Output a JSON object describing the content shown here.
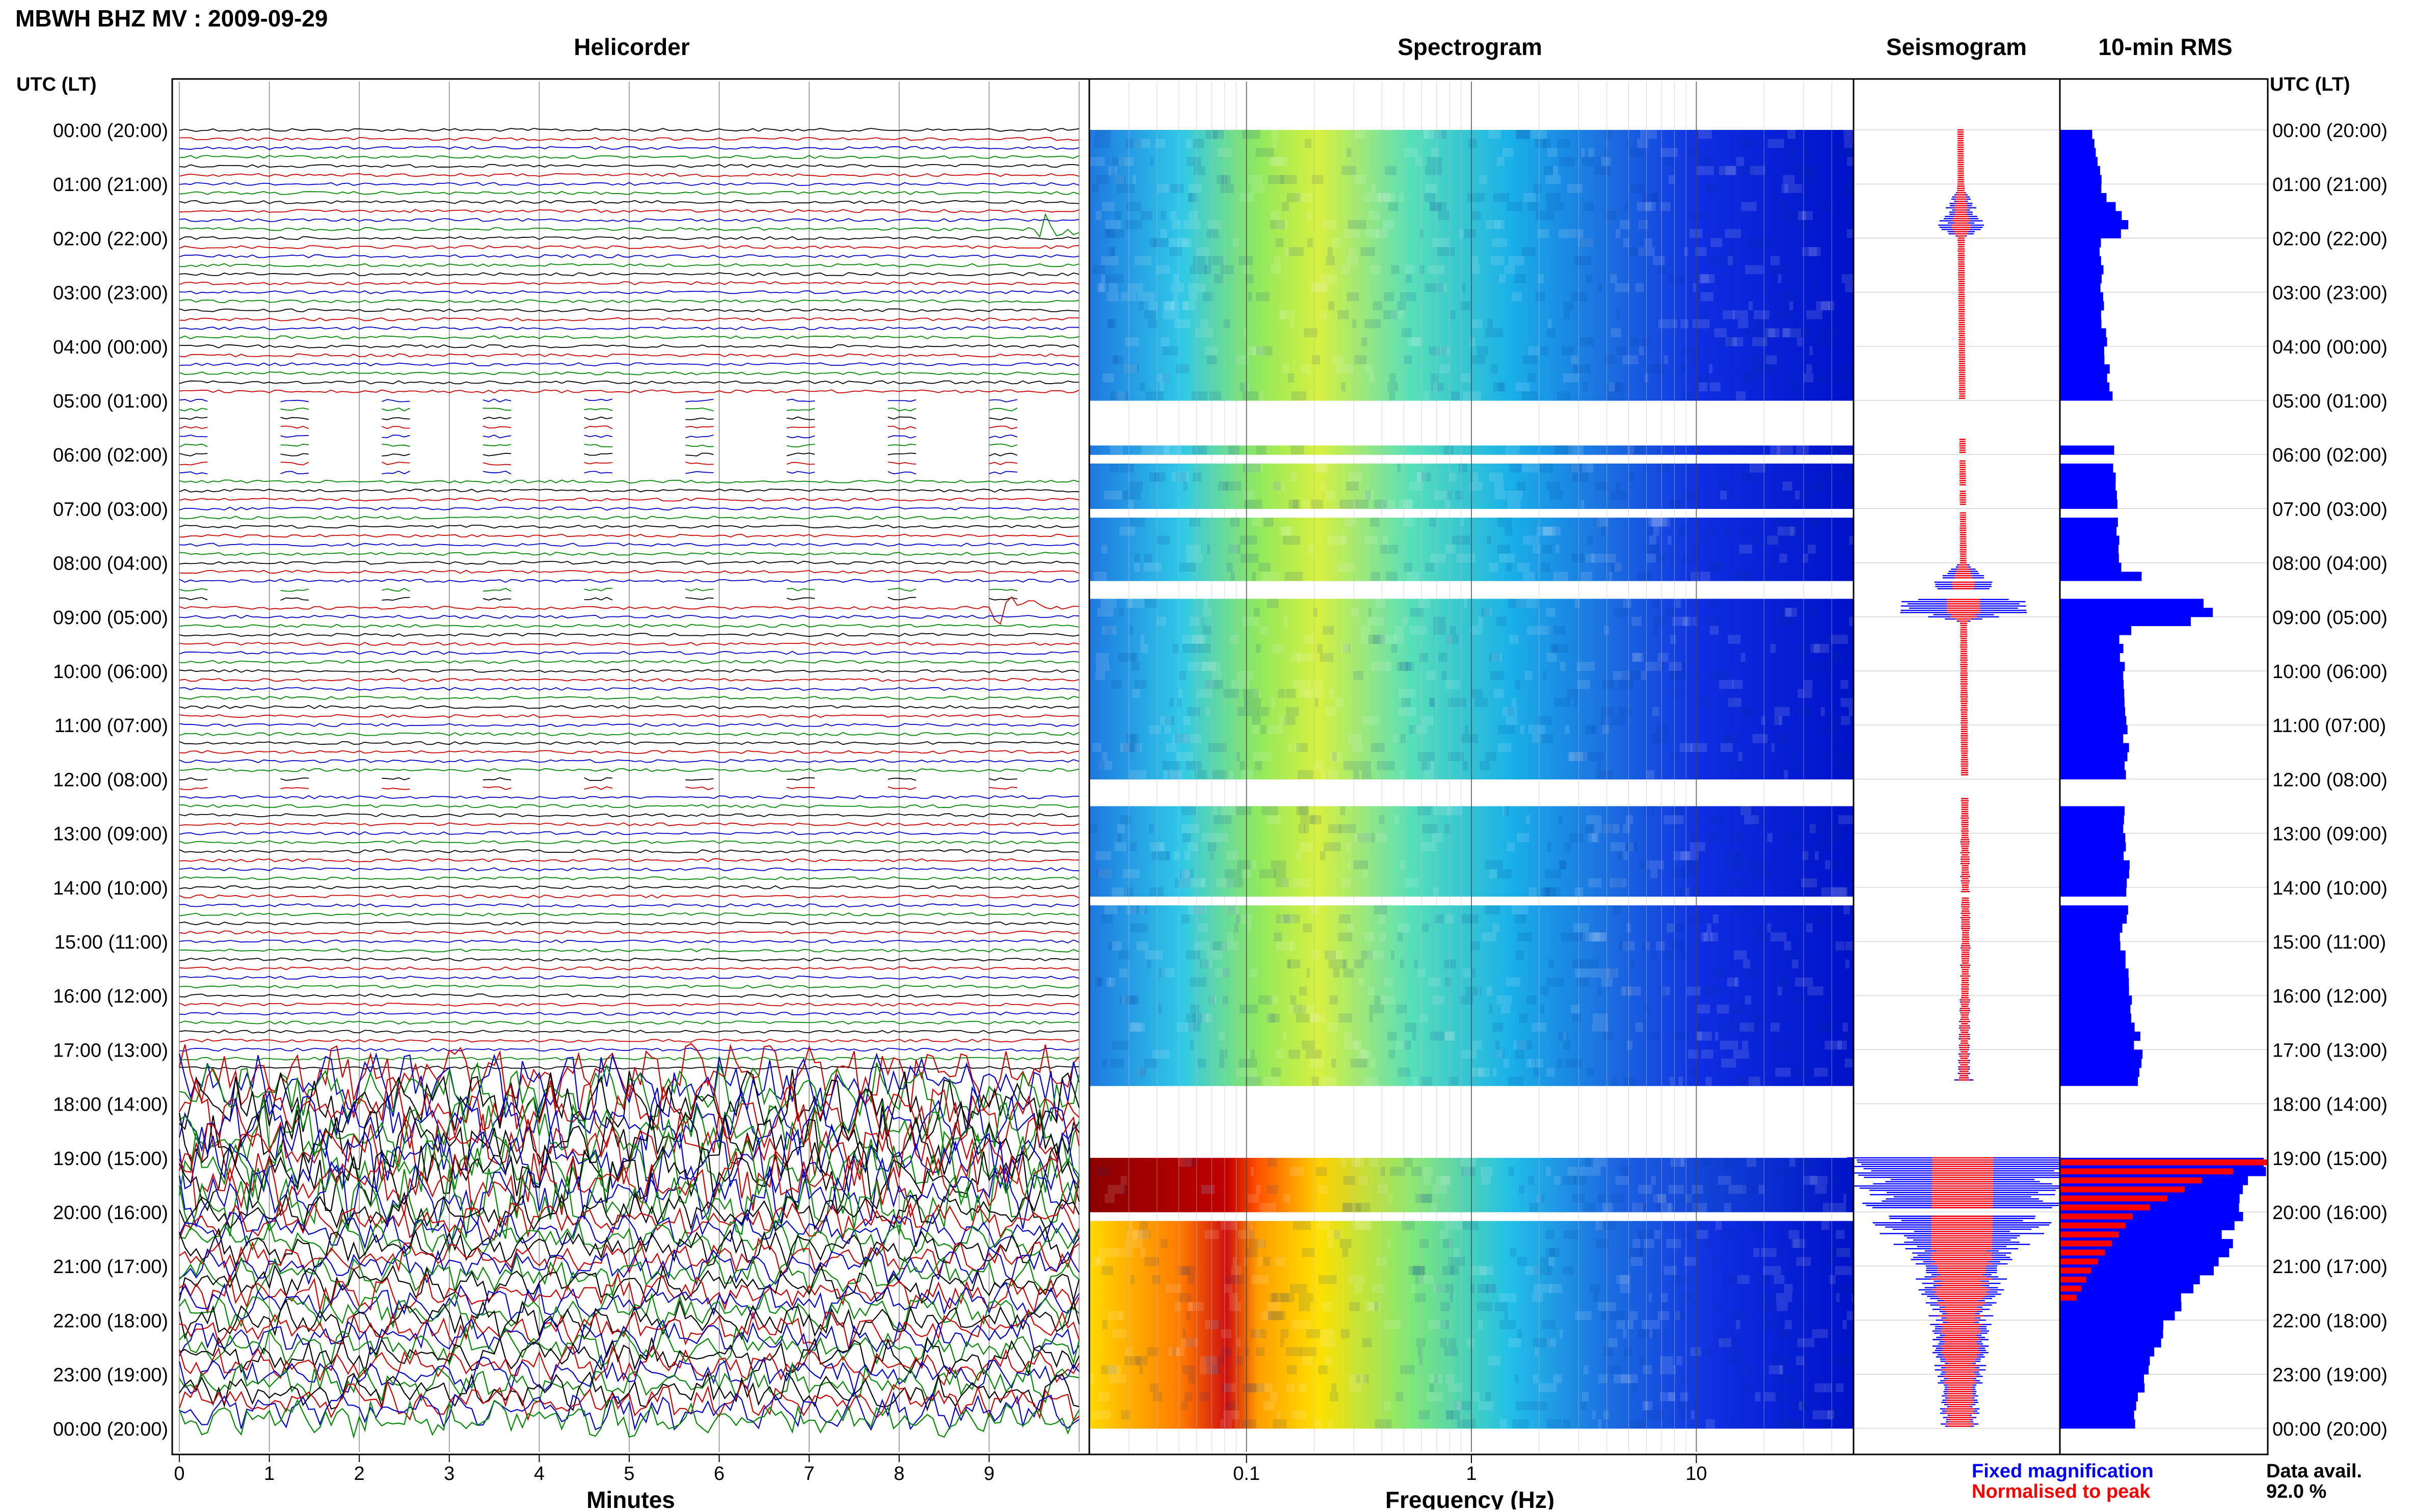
{
  "header": {
    "station_title": "MBWH BHZ MV : 2009-09-29",
    "utc_label": "UTC (LT)"
  },
  "panels": {
    "helicorder": "Helicorder",
    "spectrogram": "Spectrogram",
    "seismogram": "Seismogram",
    "rms": "10-min RMS"
  },
  "hour_labels": [
    "00:00 (20:00)",
    "01:00 (21:00)",
    "02:00 (22:00)",
    "03:00 (23:00)",
    "04:00 (00:00)",
    "05:00 (01:00)",
    "06:00 (02:00)",
    "07:00 (03:00)",
    "08:00 (04:00)",
    "09:00 (05:00)",
    "10:00 (06:00)",
    "11:00 (07:00)",
    "12:00 (08:00)",
    "13:00 (09:00)",
    "14:00 (10:00)",
    "15:00 (11:00)",
    "16:00 (12:00)",
    "17:00 (13:00)",
    "18:00 (14:00)",
    "19:00 (15:00)",
    "20:00 (16:00)",
    "21:00 (17:00)",
    "22:00 (18:00)",
    "23:00 (19:00)",
    "00:00 (20:00)"
  ],
  "footer": {
    "fixed_magnification": "Fixed magnification",
    "normalised_to_peak": "Normalised to peak",
    "data_avail_label": "Data avail.",
    "data_avail_value": "92.0 %"
  },
  "colors": {
    "trace_colors": [
      "#000000",
      "#cc0000",
      "#0000cc",
      "#008800"
    ],
    "seismo_fixed": "#0000ff",
    "seismo_normalised": "#ff0000",
    "rms_bar": "#0000ff",
    "rms_norm": "#ff0000",
    "spec_low": "#00008b",
    "spec_high": "#8b0000"
  },
  "chart_data": [
    {
      "type": "line",
      "name": "helicorder",
      "title": "Helicorder",
      "xlabel": "Minutes",
      "x_ticks": [
        "0",
        "1",
        "2",
        "3",
        "4",
        "5",
        "6",
        "7",
        "8",
        "9"
      ],
      "xlim": [
        0,
        10
      ],
      "rows": 144,
      "row_minutes": 10,
      "events": [
        {
          "hour": 1.8,
          "minute": 9.6,
          "note": "burst"
        },
        {
          "hour": 8.9,
          "minute": 9.1,
          "note": "large event"
        },
        {
          "hour": 17.5,
          "minute": 0,
          "note": "strong tremor onset"
        }
      ],
      "data_gaps_hours": [
        [
          5.0,
          6.4
        ],
        [
          8.5,
          8.7
        ],
        [
          12.0,
          12.3
        ]
      ]
    },
    {
      "type": "heatmap",
      "name": "spectrogram",
      "title": "Spectrogram",
      "xlabel": "Frequency (Hz)",
      "x_ticks": [
        "0.1",
        "1",
        "10"
      ],
      "x_scale": "log",
      "xlim": [
        0.02,
        50
      ],
      "gaps_hours": [
        [
          5.0,
          5.7
        ],
        [
          6.0,
          6.1
        ],
        [
          6.6,
          6.65
        ],
        [
          6.95,
          7.05
        ],
        [
          8.3,
          8.35
        ],
        [
          8.5,
          8.65
        ],
        [
          11.95,
          12.35
        ],
        [
          14.1,
          14.2
        ],
        [
          17.6,
          19.0
        ],
        [
          19.95,
          20.05
        ]
      ],
      "high_energy_hours": [
        19.0,
        24.0
      ]
    },
    {
      "type": "area",
      "name": "seismogram",
      "title": "Seismogram",
      "amplitude_by_hour": [
        [
          0,
          0.02
        ],
        [
          1,
          0.02
        ],
        [
          1.8,
          0.2
        ],
        [
          2,
          0.03
        ],
        [
          3,
          0.02
        ],
        [
          4,
          0.02
        ],
        [
          5,
          0.02
        ],
        [
          7,
          0.02
        ],
        [
          8,
          0.025
        ],
        [
          8.9,
          0.6
        ],
        [
          9.1,
          0.03
        ],
        [
          10,
          0.03
        ],
        [
          12,
          0.03
        ],
        [
          14,
          0.04
        ],
        [
          16,
          0.04
        ],
        [
          17.5,
          0.05
        ],
        [
          19,
          1.0
        ],
        [
          20,
          0.8
        ],
        [
          21,
          0.4
        ],
        [
          22,
          0.25
        ],
        [
          23,
          0.2
        ],
        [
          24,
          0.15
        ]
      ]
    },
    {
      "type": "bar",
      "name": "rms",
      "title": "10-min RMS",
      "rms_by_hour": [
        [
          0,
          0.15
        ],
        [
          0.5,
          0.18
        ],
        [
          1,
          0.2
        ],
        [
          1.7,
          0.35
        ],
        [
          2,
          0.2
        ],
        [
          3,
          0.2
        ],
        [
          4,
          0.22
        ],
        [
          5,
          0.25
        ],
        [
          6,
          0.25
        ],
        [
          7,
          0.28
        ],
        [
          8,
          0.3
        ],
        [
          8.9,
          0.8
        ],
        [
          9.2,
          0.3
        ],
        [
          10,
          0.3
        ],
        [
          11,
          0.32
        ],
        [
          12,
          0.32
        ],
        [
          13,
          0.32
        ],
        [
          14,
          0.32
        ],
        [
          15,
          0.3
        ],
        [
          16,
          0.35
        ],
        [
          17,
          0.38
        ],
        [
          17.6,
          0.38
        ],
        [
          19,
          1.0
        ],
        [
          19.5,
          0.9
        ],
        [
          20,
          0.85
        ],
        [
          21,
          0.75
        ],
        [
          21.5,
          0.6
        ],
        [
          22,
          0.5
        ],
        [
          23,
          0.4
        ],
        [
          24,
          0.35
        ]
      ],
      "normalised_by_hour": [
        [
          19,
          1.0
        ],
        [
          19.3,
          0.7
        ],
        [
          19.7,
          0.5
        ],
        [
          20,
          0.35
        ],
        [
          20.5,
          0.25
        ],
        [
          21,
          0.15
        ],
        [
          21.5,
          0.08
        ]
      ]
    }
  ]
}
